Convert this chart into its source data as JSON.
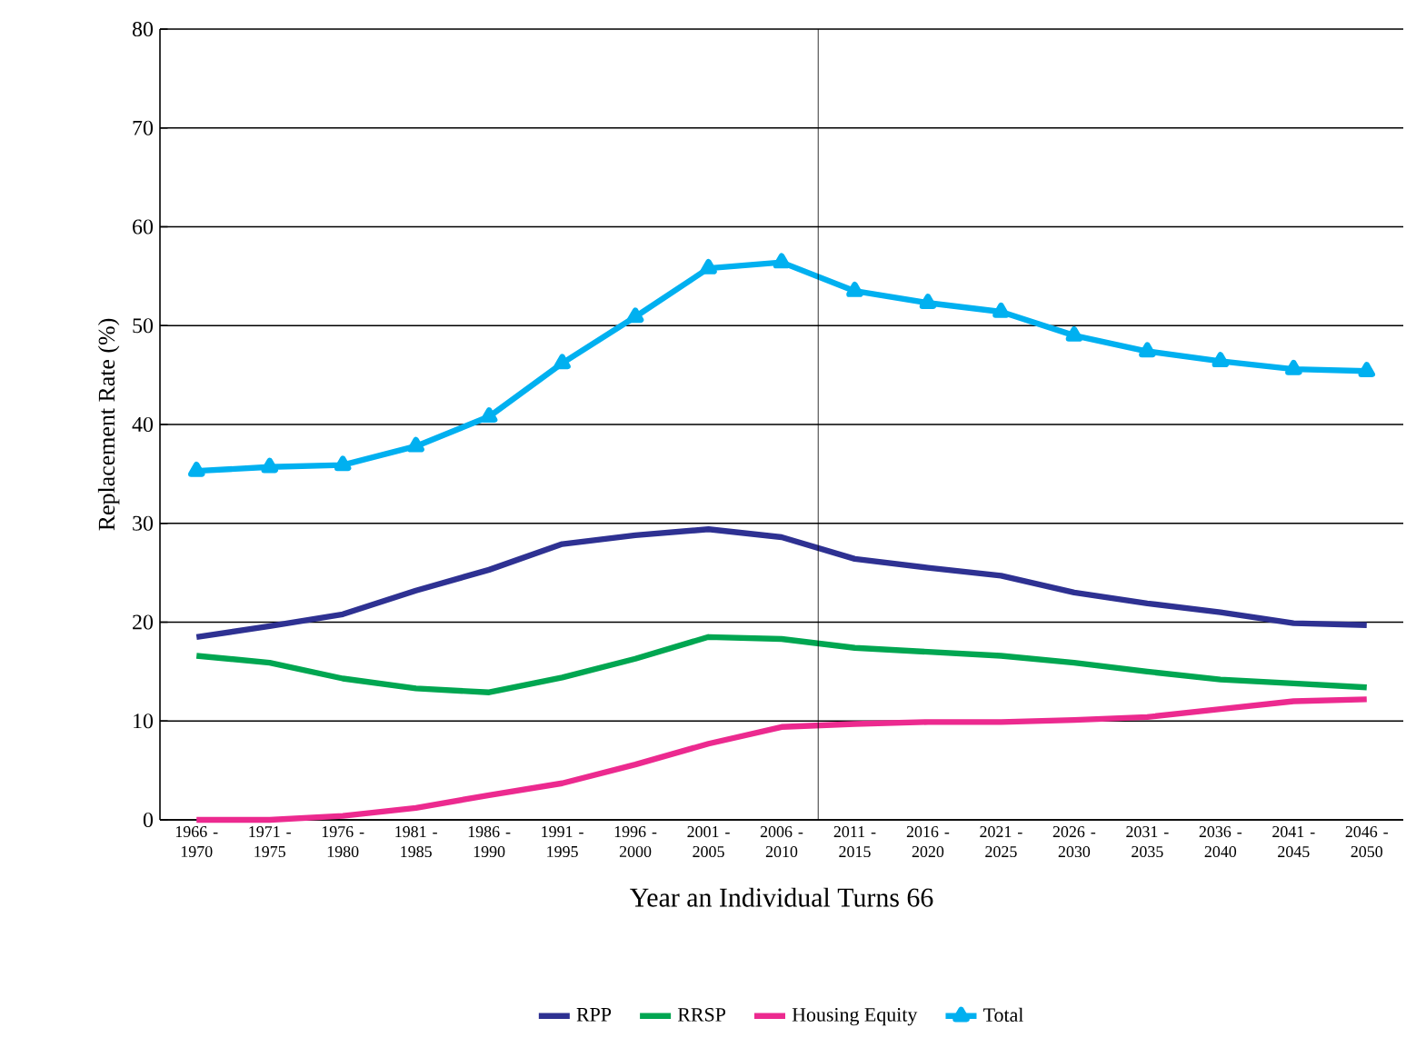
{
  "chart_data": {
    "type": "line",
    "xlabel": "Year an Individual Turns 66",
    "ylabel": "Replacement Rate (%)",
    "categories": [
      "1966 - 1970",
      "1971 - 1975",
      "1976 - 1980",
      "1981 - 1985",
      "1986 - 1990",
      "1991 - 1995",
      "1996 - 2000",
      "2001 - 2005",
      "2006 - 2010",
      "2011 - 2015",
      "2016 - 2020",
      "2021 - 2025",
      "2026 - 2030",
      "2031 - 2035",
      "2036 - 2040",
      "2041 - 2045",
      "2046 - 2050"
    ],
    "series": [
      {
        "name": "RPP",
        "color": "#2e3192",
        "marker": "none",
        "values": [
          18.5,
          19.6,
          20.8,
          23.2,
          25.3,
          27.9,
          28.8,
          29.4,
          28.6,
          26.4,
          25.5,
          24.7,
          23.0,
          21.9,
          21.0,
          19.9,
          19.7
        ]
      },
      {
        "name": "RRSP",
        "color": "#00a651",
        "marker": "none",
        "values": [
          16.6,
          15.9,
          14.3,
          13.3,
          12.9,
          14.4,
          16.3,
          18.5,
          18.3,
          17.4,
          17.0,
          16.6,
          15.9,
          15.0,
          14.2,
          13.8,
          13.4
        ]
      },
      {
        "name": "Housing Equity",
        "color": "#ec2a8f",
        "marker": "none",
        "values": [
          0,
          0,
          0.4,
          1.2,
          2.5,
          3.7,
          5.6,
          7.7,
          9.4,
          9.7,
          9.9,
          9.9,
          10.1,
          10.4,
          11.2,
          12.0,
          12.2
        ]
      },
      {
        "name": "Total",
        "color": "#00b0f0",
        "marker": "triangle",
        "values": [
          35.3,
          35.7,
          35.9,
          37.8,
          40.8,
          46.2,
          50.9,
          55.8,
          56.4,
          53.5,
          52.3,
          51.4,
          49.0,
          47.4,
          46.4,
          45.6,
          45.4
        ]
      }
    ],
    "ylim": [
      0,
      80
    ],
    "yticks": [
      0,
      10,
      20,
      30,
      40,
      50,
      60,
      70,
      80
    ],
    "grid": "y",
    "legend": "bottom",
    "line_style": "solid",
    "ref_lines": [
      {
        "axis": "x",
        "value": "2011 - 2015",
        "color": "#000000"
      }
    ]
  }
}
